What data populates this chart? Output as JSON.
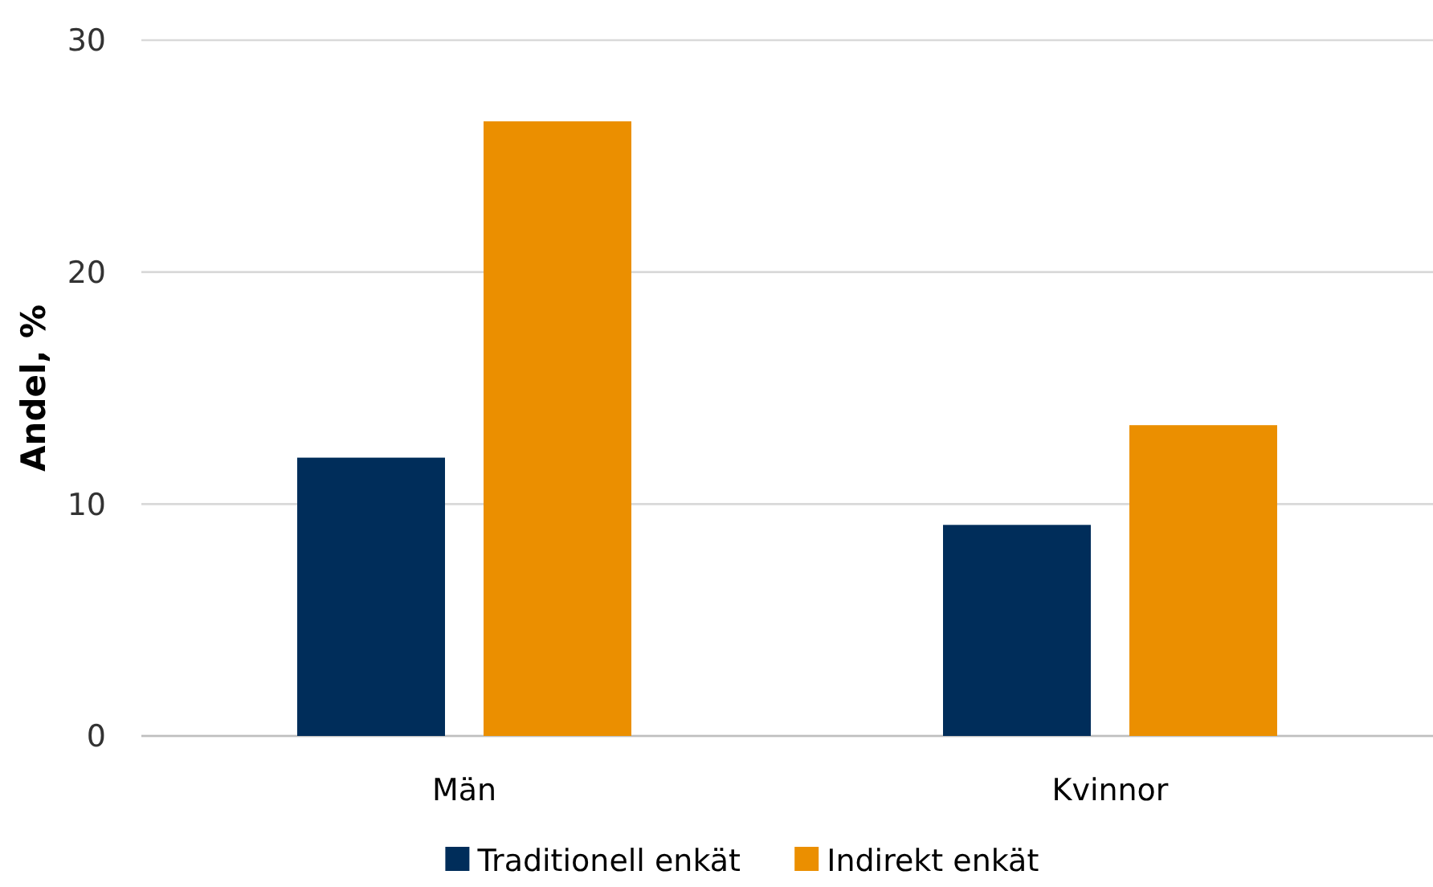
{
  "chart_data": {
    "type": "bar",
    "ylabel": "Andel, %",
    "categories": [
      "Män",
      "Kvinnor"
    ],
    "series": [
      {
        "name": "Traditionell enkät",
        "color": "#002d5a",
        "values": [
          12,
          9.1
        ]
      },
      {
        "name": "Indirekt enkät",
        "color": "#eb8f00",
        "values": [
          26.5,
          13.4
        ]
      }
    ],
    "ylim": [
      0,
      30
    ],
    "yticks": [
      0,
      10,
      20,
      30
    ],
    "grid": "y",
    "legend": "bottom"
  }
}
